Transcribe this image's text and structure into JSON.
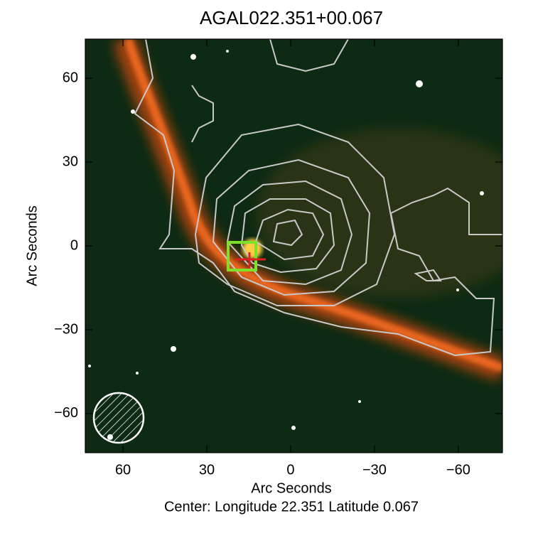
{
  "chart_data": {
    "type": "image",
    "title": "AGAL022.351+00.067",
    "x_label": "Arc Seconds",
    "y_label": "Arc Seconds",
    "footer": "Center:  Longitude 22.351 Latitude 0.067",
    "xlim": [
      73.5,
      -75.8
    ],
    "ylim": [
      -74,
      74
    ],
    "xticks": [
      60,
      30,
      0,
      {
        "value": -30,
        "label": "−30"
      },
      {
        "value": -60,
        "label": "−60"
      }
    ],
    "yticks": [
      {
        "value": -60,
        "label": "−60"
      },
      {
        "value": -30,
        "label": "−30"
      },
      0,
      30,
      60
    ]
  }
}
